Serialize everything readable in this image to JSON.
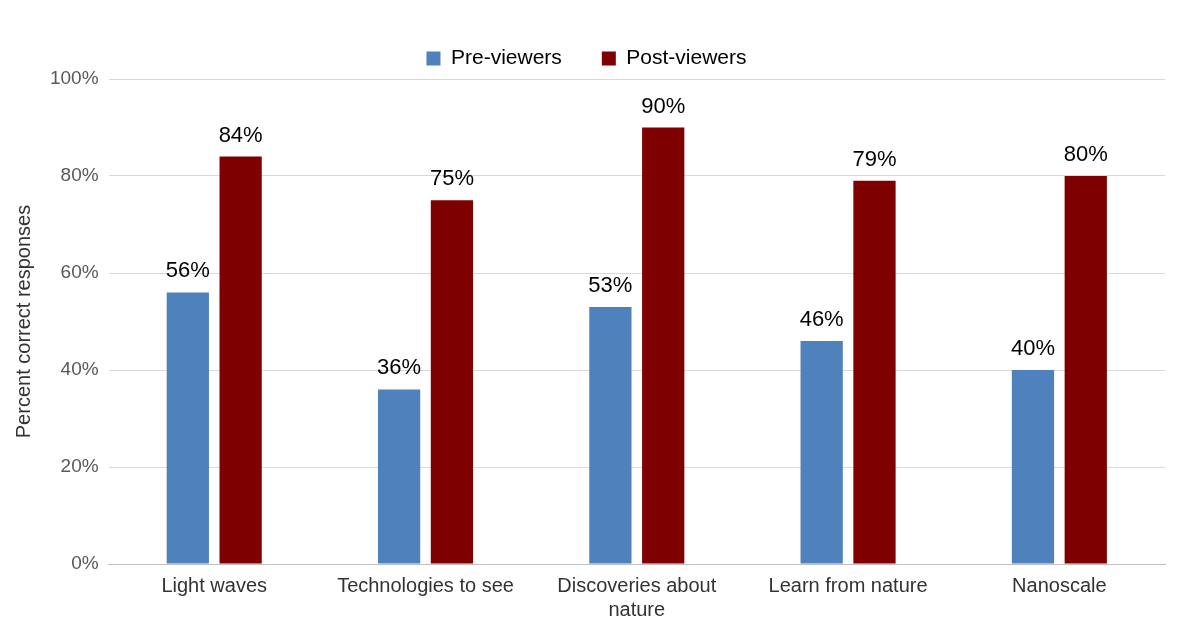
{
  "chart_data": {
    "type": "bar",
    "ylabel": "Percent correct responses",
    "categories": [
      "Light waves",
      "Technologies to see",
      "Discoveries about nature",
      "Learn from nature",
      "Nanoscale"
    ],
    "series": [
      {
        "name": "Pre-viewers",
        "color": "#4f81bd",
        "values": [
          56,
          36,
          53,
          46,
          40
        ],
        "value_labels": [
          "56%",
          "36%",
          "53%",
          "46%",
          "40%"
        ]
      },
      {
        "name": "Post-viewers",
        "color": "#7f0000",
        "values": [
          84,
          75,
          90,
          79,
          80
        ],
        "value_labels": [
          "84%",
          "75%",
          "90%",
          "79%",
          "80%"
        ]
      }
    ],
    "ylim": [
      0,
      100
    ],
    "yticks": [
      {
        "value": 0,
        "label": "0%"
      },
      {
        "value": 20,
        "label": "20%"
      },
      {
        "value": 40,
        "label": "40%"
      },
      {
        "value": 60,
        "label": "60%"
      },
      {
        "value": 80,
        "label": "80%"
      },
      {
        "value": 100,
        "label": "100%"
      }
    ],
    "grid": "y",
    "legend": "top"
  }
}
